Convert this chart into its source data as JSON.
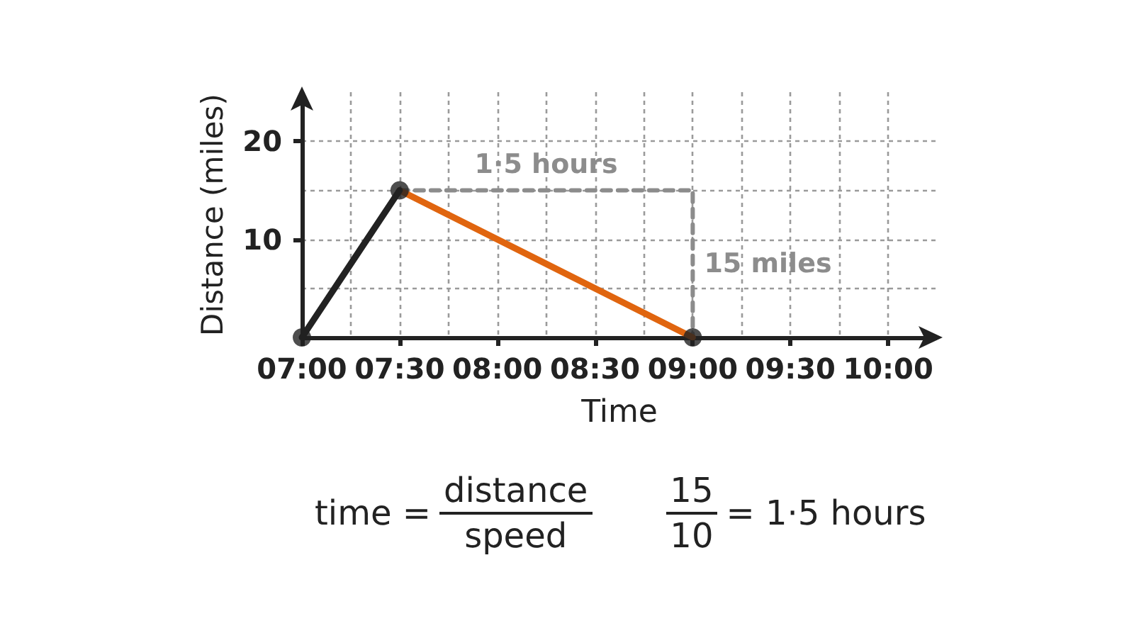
{
  "chart_data": {
    "type": "line",
    "xlabel": "Time",
    "ylabel": "Distance (miles)",
    "xlim": [
      7,
      10.25
    ],
    "ylim": [
      0,
      25
    ],
    "xticks": [
      {
        "value": 7,
        "label": "07:00"
      },
      {
        "value": 7.25,
        "label": null
      },
      {
        "value": 7.5,
        "label": "07:30"
      },
      {
        "value": 7.75,
        "label": null
      },
      {
        "value": 8,
        "label": "08:00"
      },
      {
        "value": 8.25,
        "label": null
      },
      {
        "value": 8.5,
        "label": "08:30"
      },
      {
        "value": 8.75,
        "label": null
      },
      {
        "value": 9,
        "label": "09:00"
      },
      {
        "value": 9.25,
        "label": null
      },
      {
        "value": 9.5,
        "label": "09:30"
      },
      {
        "value": 9.75,
        "label": null
      },
      {
        "value": 10,
        "label": "10:00"
      }
    ],
    "yticks": [
      {
        "value": 5,
        "label": null
      },
      10,
      {
        "value": 15,
        "label": null
      },
      20
    ],
    "grid": true,
    "marker": "none",
    "line_style": "solid",
    "series": [
      {
        "color": "#8c8c8c",
        "x": [
          7.5,
          9,
          9
        ],
        "values": [
          15,
          15,
          0
        ],
        "line_style": "dashed"
      },
      {
        "color": "#e0650f",
        "x": [
          7.5,
          9
        ],
        "values": [
          15,
          0
        ]
      },
      {
        "color": "#222222",
        "x": [
          7,
          7.5
        ],
        "values": [
          0,
          15
        ]
      },
      {
        "type": "scatter",
        "marker": "circle",
        "color": "#222222",
        "x": [
          7,
          7.5,
          9
        ],
        "values": [
          0,
          15,
          0
        ]
      }
    ],
    "annotations": [
      "1·5 hours",
      "15 miles",
      "time =",
      "distance",
      "speed",
      "15",
      "10",
      "= 1·5 hours"
    ]
  }
}
